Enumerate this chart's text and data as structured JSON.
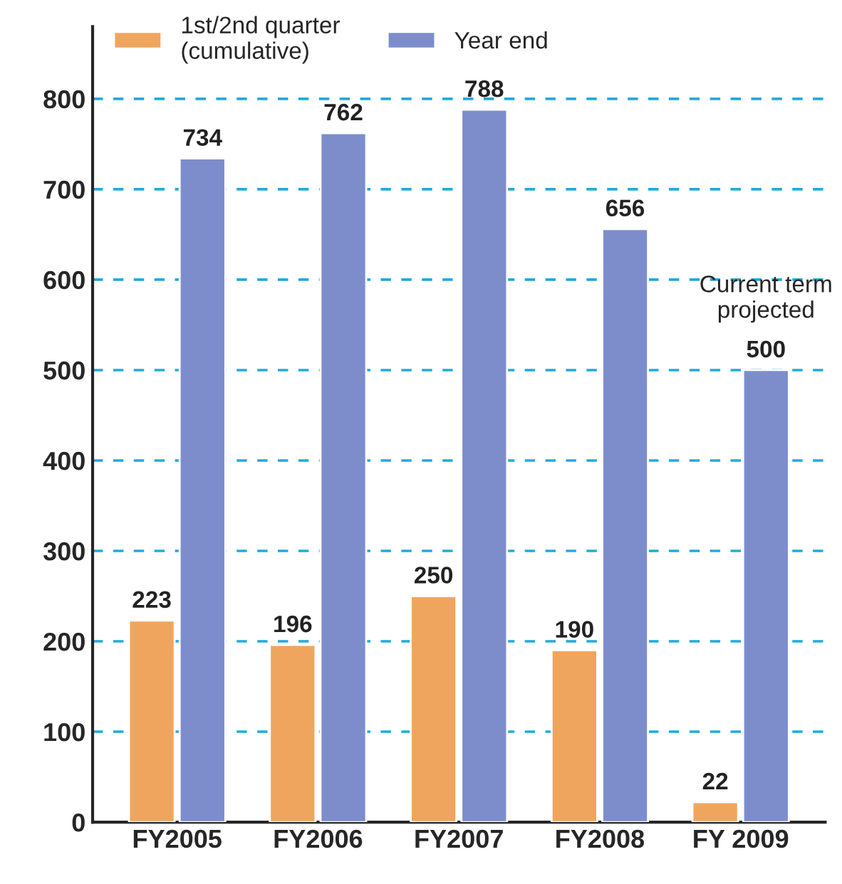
{
  "chart_data": {
    "type": "bar",
    "categories": [
      "FY2005",
      "FY2006",
      "FY2007",
      "FY2008",
      "FY 2009"
    ],
    "series": [
      {
        "name": "1st/2nd quarter\n(cumulative)",
        "color": "#f0a55e",
        "values": [
          223,
          196,
          250,
          190,
          22
        ]
      },
      {
        "name": "Year end",
        "color": "#7d8dcc",
        "values": [
          734,
          762,
          788,
          656,
          500
        ]
      }
    ],
    "data_labels": true,
    "ylim": [
      0,
      880
    ],
    "yticks": [
      0,
      100,
      200,
      300,
      400,
      500,
      600,
      700,
      800
    ],
    "grid": "y",
    "legend": "top left",
    "annotations": [
      {
        "text": "Current term\nprojected",
        "x": "FY 2009",
        "y": 500
      }
    ]
  }
}
